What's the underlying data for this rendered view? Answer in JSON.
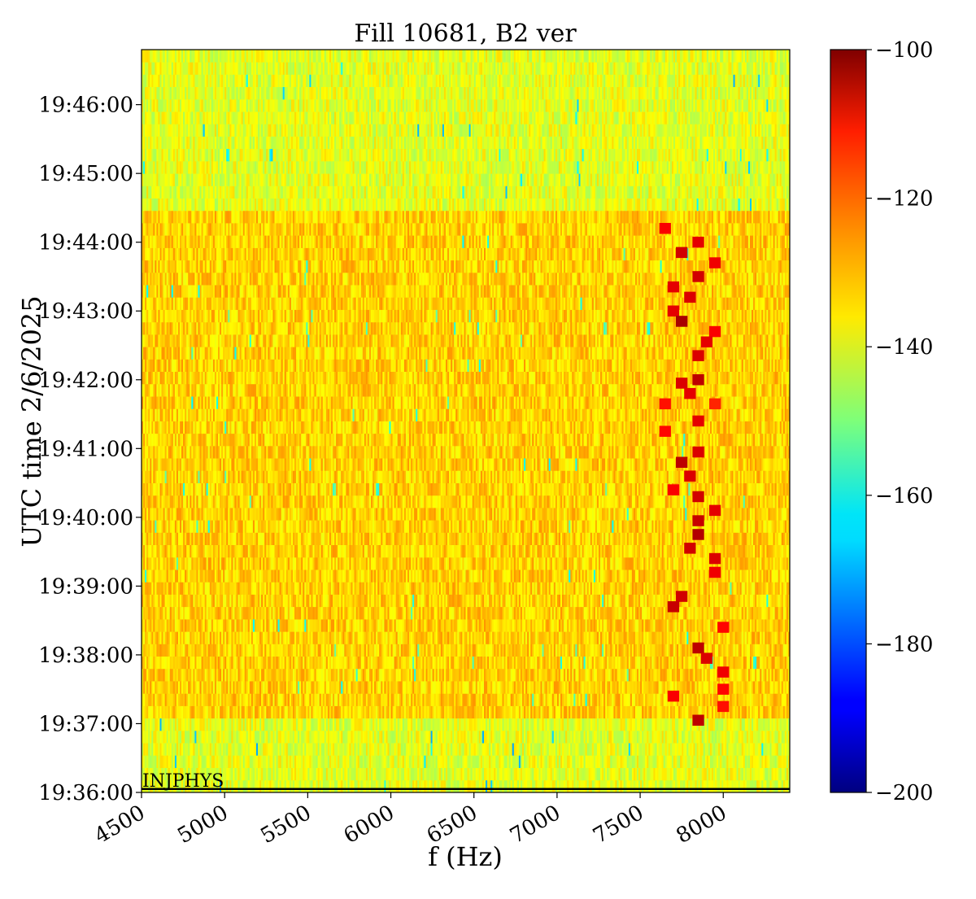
{
  "chart_data": {
    "type": "heatmap",
    "title": "Fill 10681, B2 ver",
    "xlabel": "f (Hz)",
    "ylabel": "UTC time 2/6/2025",
    "x_ticks": [
      4500,
      5000,
      5500,
      6000,
      6500,
      7000,
      7500,
      8000
    ],
    "xlim": [
      4500,
      8400
    ],
    "y_tick_labels": [
      "19:36:00",
      "19:37:00",
      "19:38:00",
      "19:39:00",
      "19:40:00",
      "19:41:00",
      "19:42:00",
      "19:43:00",
      "19:44:00",
      "19:45:00",
      "19:46:00"
    ],
    "y_range_minutes": [
      0,
      10.8
    ],
    "colorbar": {
      "colormap": "jet",
      "range": [
        -200,
        -100
      ],
      "ticks": [
        -100,
        -120,
        -140,
        -160,
        -180,
        -200
      ],
      "tick_labels": [
        "−100",
        "−120",
        "−140",
        "−160",
        "−180",
        "−200"
      ]
    },
    "background_level_dB": -133,
    "quiet_level_dB": -140,
    "active_window_minutes": [
      1,
      8.4
    ],
    "hot_spots": [
      {
        "f": 7650,
        "t": 8.2,
        "value": -112
      },
      {
        "f": 7850,
        "t": 8.0,
        "value": -110
      },
      {
        "f": 7750,
        "t": 7.85,
        "value": -108
      },
      {
        "f": 7950,
        "t": 7.7,
        "value": -111
      },
      {
        "f": 7850,
        "t": 7.5,
        "value": -108
      },
      {
        "f": 7700,
        "t": 7.35,
        "value": -110
      },
      {
        "f": 7800,
        "t": 7.2,
        "value": -109
      },
      {
        "f": 7700,
        "t": 7.0,
        "value": -110
      },
      {
        "f": 7750,
        "t": 6.85,
        "value": -104
      },
      {
        "f": 7950,
        "t": 6.7,
        "value": -112
      },
      {
        "f": 7900,
        "t": 6.55,
        "value": -110
      },
      {
        "f": 7850,
        "t": 6.35,
        "value": -109
      },
      {
        "f": 7850,
        "t": 6.0,
        "value": -106
      },
      {
        "f": 7750,
        "t": 5.95,
        "value": -109
      },
      {
        "f": 7800,
        "t": 5.8,
        "value": -110
      },
      {
        "f": 7650,
        "t": 5.65,
        "value": -114
      },
      {
        "f": 7950,
        "t": 5.65,
        "value": -116
      },
      {
        "f": 7850,
        "t": 5.4,
        "value": -110
      },
      {
        "f": 7650,
        "t": 5.25,
        "value": -113
      },
      {
        "f": 7850,
        "t": 4.95,
        "value": -109
      },
      {
        "f": 7750,
        "t": 4.8,
        "value": -106
      },
      {
        "f": 7800,
        "t": 4.6,
        "value": -109
      },
      {
        "f": 7700,
        "t": 4.4,
        "value": -112
      },
      {
        "f": 7850,
        "t": 4.3,
        "value": -108
      },
      {
        "f": 7950,
        "t": 4.1,
        "value": -110
      },
      {
        "f": 7850,
        "t": 3.95,
        "value": -107
      },
      {
        "f": 7850,
        "t": 3.75,
        "value": -105
      },
      {
        "f": 7800,
        "t": 3.55,
        "value": -108
      },
      {
        "f": 7950,
        "t": 3.4,
        "value": -109
      },
      {
        "f": 7950,
        "t": 3.2,
        "value": -111
      },
      {
        "f": 7750,
        "t": 2.85,
        "value": -108
      },
      {
        "f": 7700,
        "t": 2.7,
        "value": -107
      },
      {
        "f": 8000,
        "t": 2.4,
        "value": -113
      },
      {
        "f": 7850,
        "t": 2.1,
        "value": -106
      },
      {
        "f": 7900,
        "t": 1.95,
        "value": -109
      },
      {
        "f": 8000,
        "t": 1.75,
        "value": -111
      },
      {
        "f": 8000,
        "t": 1.5,
        "value": -113
      },
      {
        "f": 7700,
        "t": 1.4,
        "value": -112
      },
      {
        "f": 8000,
        "t": 1.25,
        "value": -114
      },
      {
        "f": 7850,
        "t": 1.05,
        "value": -106
      }
    ],
    "annotation": {
      "text": "INJPHYS",
      "t": 0.05
    }
  }
}
